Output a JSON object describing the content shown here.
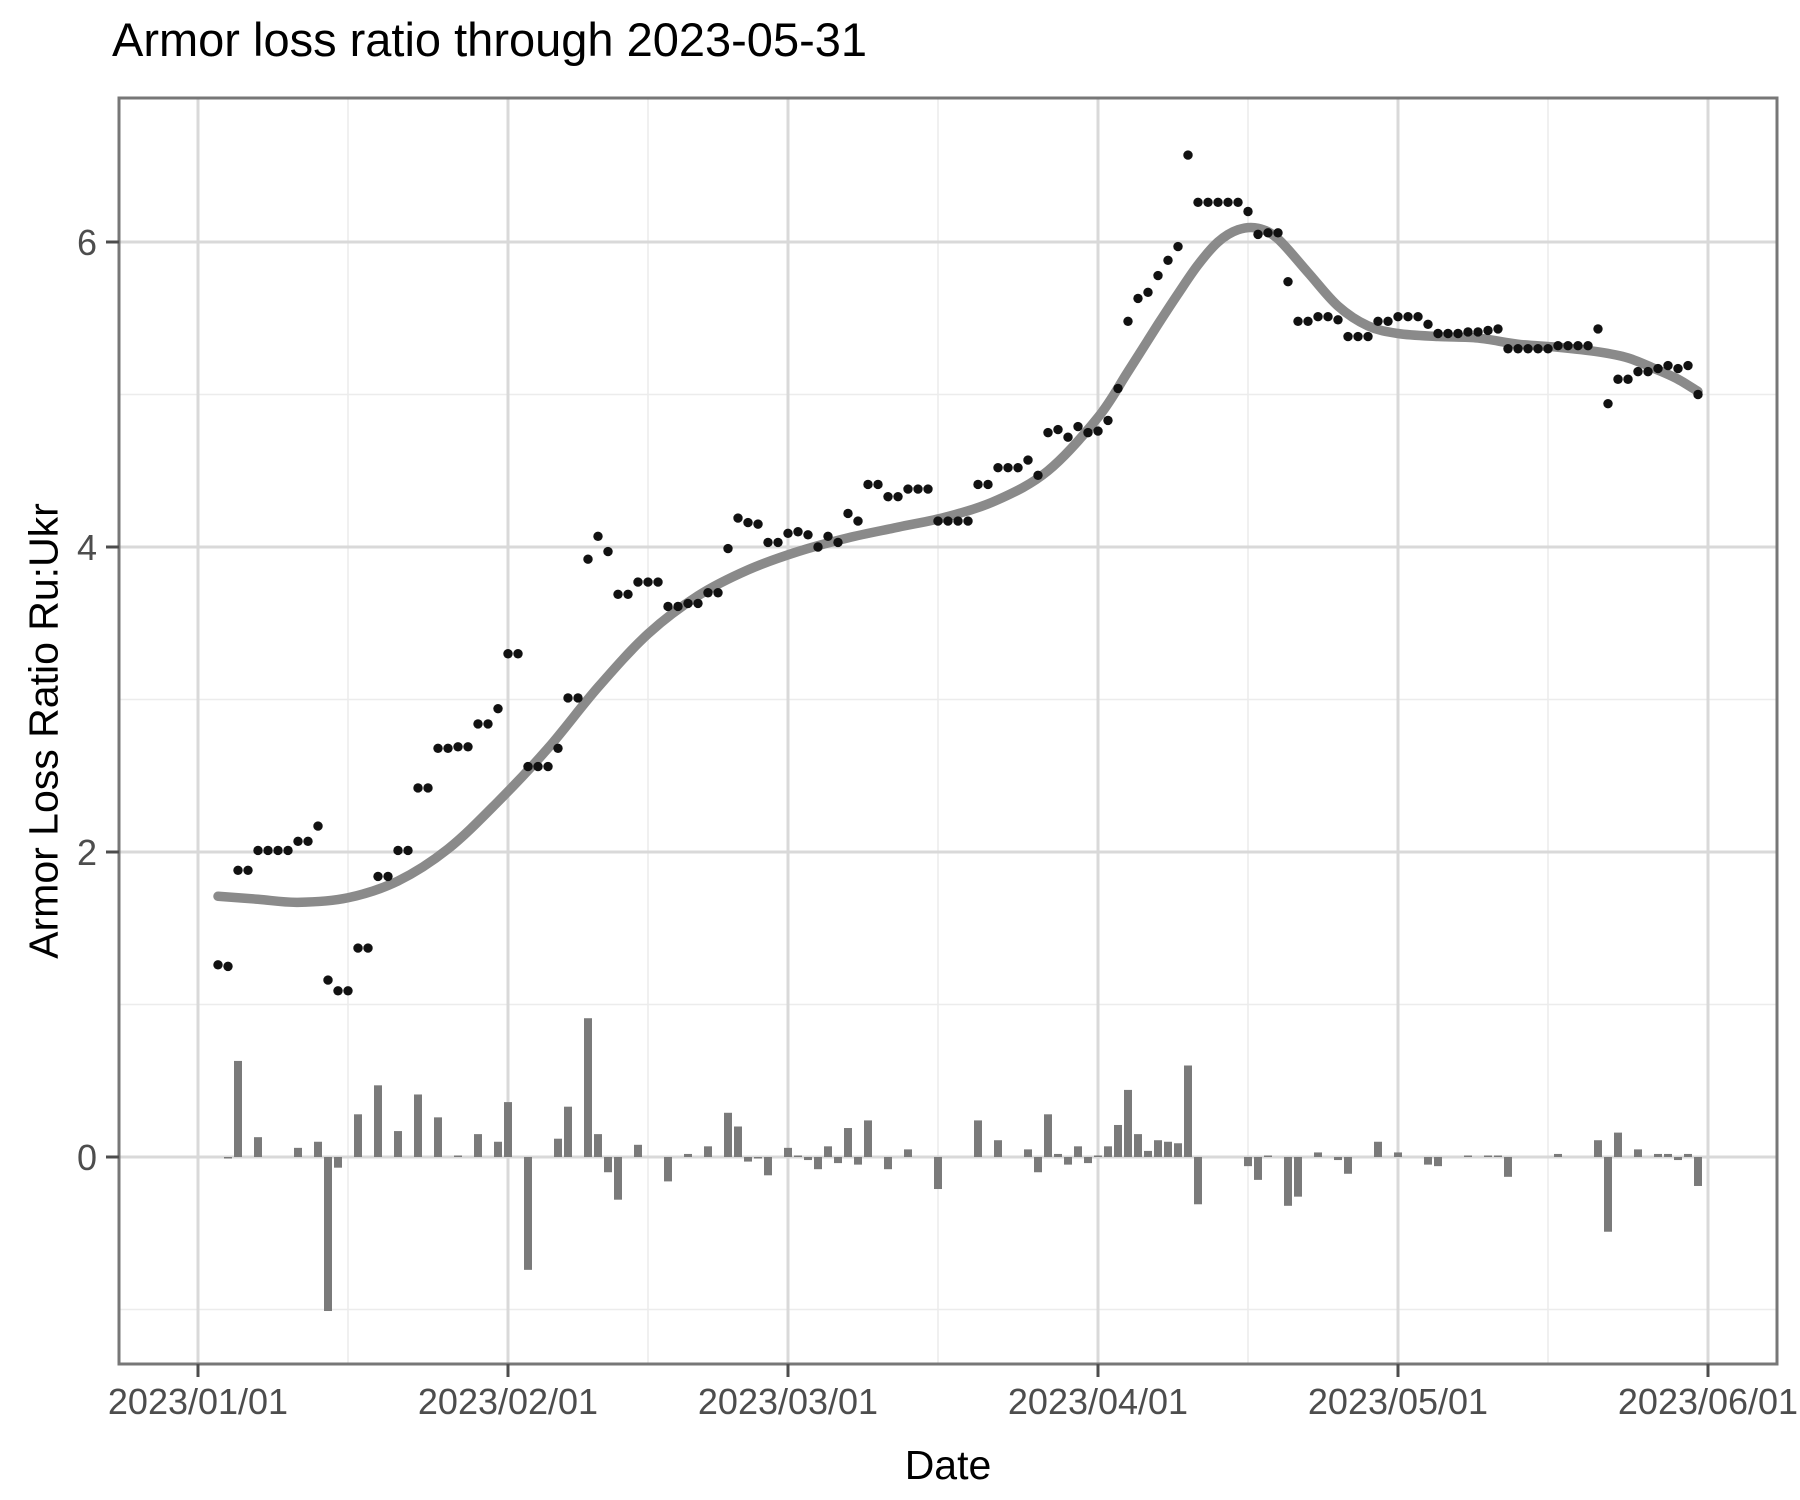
{
  "title": "Armor loss ratio through 2023-05-31",
  "colors": {
    "background": "#FFFFFF",
    "point": "#111111",
    "smooth_line": "#8A8A8A",
    "bar": "#7A7A7A",
    "grid_major": "#D9D9D9",
    "grid_minor": "#ECECEC",
    "panel_border": "#777777",
    "tick_mark": "#4D4D4D",
    "tick_label": "#4D4D4D",
    "title_text": "#000000",
    "axis_title_text": "#000000"
  },
  "chart_data": {
    "type": "scatter",
    "title": "Armor loss ratio through 2023-05-31",
    "xlabel": "Date",
    "ylabel": "Armor Loss Ratio Ru:Ukr",
    "x_tick_labels": [
      "2023/01/01",
      "2023/02/01",
      "2023/03/01",
      "2023/04/01",
      "2023/05/01",
      "2023/06/01"
    ],
    "x_tick_dates": [
      "2023-01-01",
      "2023-02-01",
      "2023-03-01",
      "2023-04-01",
      "2023-05-01",
      "2023-06-01"
    ],
    "x_minor_dates": [
      "2023-01-16",
      "2023-02-15",
      "2023-03-16",
      "2023-04-16",
      "2023-05-16"
    ],
    "y_tick_labels": [
      "0",
      "2",
      "4",
      "6"
    ],
    "y_ticks": [
      0,
      2,
      4,
      6
    ],
    "y_minor_ticks": [
      -1,
      1,
      3,
      5
    ],
    "ylim": [
      -1.36,
      6.95
    ],
    "xlim": [
      "2022-12-24",
      "2023-06-08"
    ],
    "grid": true,
    "legend_position": "none",
    "series": [
      {
        "name": "daily_armor_loss_ratio",
        "type": "scatter",
        "points": [
          [
            "2023-01-03",
            1.26
          ],
          [
            "2023-01-04",
            1.25
          ],
          [
            "2023-01-05",
            1.88
          ],
          [
            "2023-01-06",
            1.88
          ],
          [
            "2023-01-07",
            2.01
          ],
          [
            "2023-01-08",
            2.01
          ],
          [
            "2023-01-09",
            2.01
          ],
          [
            "2023-01-10",
            2.01
          ],
          [
            "2023-01-11",
            2.07
          ],
          [
            "2023-01-12",
            2.07
          ],
          [
            "2023-01-13",
            2.17
          ],
          [
            "2023-01-14",
            1.16
          ],
          [
            "2023-01-15",
            1.09
          ],
          [
            "2023-01-16",
            1.09
          ],
          [
            "2023-01-17",
            1.37
          ],
          [
            "2023-01-18",
            1.37
          ],
          [
            "2023-01-19",
            1.84
          ],
          [
            "2023-01-20",
            1.84
          ],
          [
            "2023-01-21",
            2.01
          ],
          [
            "2023-01-22",
            2.01
          ],
          [
            "2023-01-23",
            2.42
          ],
          [
            "2023-01-24",
            2.42
          ],
          [
            "2023-01-25",
            2.68
          ],
          [
            "2023-01-26",
            2.68
          ],
          [
            "2023-01-27",
            2.69
          ],
          [
            "2023-01-28",
            2.69
          ],
          [
            "2023-01-29",
            2.84
          ],
          [
            "2023-01-30",
            2.84
          ],
          [
            "2023-01-31",
            2.94
          ],
          [
            "2023-02-01",
            3.3
          ],
          [
            "2023-02-02",
            3.3
          ],
          [
            "2023-02-03",
            2.56
          ],
          [
            "2023-02-04",
            2.56
          ],
          [
            "2023-02-05",
            2.56
          ],
          [
            "2023-02-06",
            2.68
          ],
          [
            "2023-02-07",
            3.01
          ],
          [
            "2023-02-08",
            3.01
          ],
          [
            "2023-02-09",
            3.92
          ],
          [
            "2023-02-10",
            4.07
          ],
          [
            "2023-02-11",
            3.97
          ],
          [
            "2023-02-12",
            3.69
          ],
          [
            "2023-02-13",
            3.69
          ],
          [
            "2023-02-14",
            3.77
          ],
          [
            "2023-02-15",
            3.77
          ],
          [
            "2023-02-16",
            3.77
          ],
          [
            "2023-02-17",
            3.61
          ],
          [
            "2023-02-18",
            3.61
          ],
          [
            "2023-02-19",
            3.63
          ],
          [
            "2023-02-20",
            3.63
          ],
          [
            "2023-02-21",
            3.7
          ],
          [
            "2023-02-22",
            3.7
          ],
          [
            "2023-02-23",
            3.99
          ],
          [
            "2023-02-24",
            4.19
          ],
          [
            "2023-02-25",
            4.16
          ],
          [
            "2023-02-26",
            4.15
          ],
          [
            "2023-02-27",
            4.03
          ],
          [
            "2023-02-28",
            4.03
          ],
          [
            "2023-03-01",
            4.09
          ],
          [
            "2023-03-02",
            4.1
          ],
          [
            "2023-03-03",
            4.08
          ],
          [
            "2023-03-04",
            4.0
          ],
          [
            "2023-03-05",
            4.07
          ],
          [
            "2023-03-06",
            4.03
          ],
          [
            "2023-03-07",
            4.22
          ],
          [
            "2023-03-08",
            4.17
          ],
          [
            "2023-03-09",
            4.41
          ],
          [
            "2023-03-10",
            4.41
          ],
          [
            "2023-03-11",
            4.33
          ],
          [
            "2023-03-12",
            4.33
          ],
          [
            "2023-03-13",
            4.38
          ],
          [
            "2023-03-14",
            4.38
          ],
          [
            "2023-03-15",
            4.38
          ],
          [
            "2023-03-16",
            4.17
          ],
          [
            "2023-03-17",
            4.17
          ],
          [
            "2023-03-18",
            4.17
          ],
          [
            "2023-03-19",
            4.17
          ],
          [
            "2023-03-20",
            4.41
          ],
          [
            "2023-03-21",
            4.41
          ],
          [
            "2023-03-22",
            4.52
          ],
          [
            "2023-03-23",
            4.52
          ],
          [
            "2023-03-24",
            4.52
          ],
          [
            "2023-03-25",
            4.57
          ],
          [
            "2023-03-26",
            4.47
          ],
          [
            "2023-03-27",
            4.75
          ],
          [
            "2023-03-28",
            4.77
          ],
          [
            "2023-03-29",
            4.72
          ],
          [
            "2023-03-30",
            4.79
          ],
          [
            "2023-03-31",
            4.75
          ],
          [
            "2023-04-01",
            4.76
          ],
          [
            "2023-04-02",
            4.83
          ],
          [
            "2023-04-03",
            5.04
          ],
          [
            "2023-04-04",
            5.48
          ],
          [
            "2023-04-05",
            5.63
          ],
          [
            "2023-04-06",
            5.67
          ],
          [
            "2023-04-07",
            5.78
          ],
          [
            "2023-04-08",
            5.88
          ],
          [
            "2023-04-09",
            5.97
          ],
          [
            "2023-04-10",
            6.57
          ],
          [
            "2023-04-11",
            6.26
          ],
          [
            "2023-04-12",
            6.26
          ],
          [
            "2023-04-13",
            6.26
          ],
          [
            "2023-04-14",
            6.26
          ],
          [
            "2023-04-15",
            6.26
          ],
          [
            "2023-04-16",
            6.2
          ],
          [
            "2023-04-17",
            6.05
          ],
          [
            "2023-04-18",
            6.06
          ],
          [
            "2023-04-19",
            6.06
          ],
          [
            "2023-04-20",
            5.74
          ],
          [
            "2023-04-21",
            5.48
          ],
          [
            "2023-04-22",
            5.48
          ],
          [
            "2023-04-23",
            5.51
          ],
          [
            "2023-04-24",
            5.51
          ],
          [
            "2023-04-25",
            5.49
          ],
          [
            "2023-04-26",
            5.38
          ],
          [
            "2023-04-27",
            5.38
          ],
          [
            "2023-04-28",
            5.38
          ],
          [
            "2023-04-29",
            5.48
          ],
          [
            "2023-04-30",
            5.48
          ],
          [
            "2023-05-01",
            5.51
          ],
          [
            "2023-05-02",
            5.51
          ],
          [
            "2023-05-03",
            5.51
          ],
          [
            "2023-05-04",
            5.46
          ],
          [
            "2023-05-05",
            5.4
          ],
          [
            "2023-05-06",
            5.4
          ],
          [
            "2023-05-07",
            5.4
          ],
          [
            "2023-05-08",
            5.41
          ],
          [
            "2023-05-09",
            5.41
          ],
          [
            "2023-05-10",
            5.42
          ],
          [
            "2023-05-11",
            5.43
          ],
          [
            "2023-05-12",
            5.3
          ],
          [
            "2023-05-13",
            5.3
          ],
          [
            "2023-05-14",
            5.3
          ],
          [
            "2023-05-15",
            5.3
          ],
          [
            "2023-05-16",
            5.3
          ],
          [
            "2023-05-17",
            5.32
          ],
          [
            "2023-05-18",
            5.32
          ],
          [
            "2023-05-19",
            5.32
          ],
          [
            "2023-05-20",
            5.32
          ],
          [
            "2023-05-21",
            5.43
          ],
          [
            "2023-05-22",
            4.94
          ],
          [
            "2023-05-23",
            5.1
          ],
          [
            "2023-05-24",
            5.1
          ],
          [
            "2023-05-25",
            5.15
          ],
          [
            "2023-05-26",
            5.15
          ],
          [
            "2023-05-27",
            5.17
          ],
          [
            "2023-05-28",
            5.19
          ],
          [
            "2023-05-29",
            5.17
          ],
          [
            "2023-05-30",
            5.19
          ],
          [
            "2023-05-31",
            5.0
          ]
        ]
      },
      {
        "name": "loess_smooth",
        "type": "line",
        "points": [
          [
            "2023-01-03",
            1.71
          ],
          [
            "2023-01-07",
            1.69
          ],
          [
            "2023-01-11",
            1.67
          ],
          [
            "2023-01-16",
            1.7
          ],
          [
            "2023-01-21",
            1.81
          ],
          [
            "2023-01-26",
            2.02
          ],
          [
            "2023-01-31",
            2.33
          ],
          [
            "2023-02-05",
            2.68
          ],
          [
            "2023-02-10",
            3.08
          ],
          [
            "2023-02-15",
            3.43
          ],
          [
            "2023-02-20",
            3.68
          ],
          [
            "2023-02-25",
            3.85
          ],
          [
            "2023-03-02",
            3.97
          ],
          [
            "2023-03-07",
            4.06
          ],
          [
            "2023-03-12",
            4.13
          ],
          [
            "2023-03-17",
            4.2
          ],
          [
            "2023-03-22",
            4.31
          ],
          [
            "2023-03-27",
            4.5
          ],
          [
            "2023-04-01",
            4.85
          ],
          [
            "2023-04-04",
            5.15
          ],
          [
            "2023-04-07",
            5.46
          ],
          [
            "2023-04-09",
            5.66
          ],
          [
            "2023-04-11",
            5.85
          ],
          [
            "2023-04-13",
            6.0
          ],
          [
            "2023-04-15",
            6.08
          ],
          [
            "2023-04-17",
            6.09
          ],
          [
            "2023-04-19",
            6.02
          ],
          [
            "2023-04-22",
            5.8
          ],
          [
            "2023-04-25",
            5.58
          ],
          [
            "2023-04-28",
            5.45
          ],
          [
            "2023-05-01",
            5.4
          ],
          [
            "2023-05-05",
            5.38
          ],
          [
            "2023-05-09",
            5.37
          ],
          [
            "2023-05-13",
            5.33
          ],
          [
            "2023-05-17",
            5.31
          ],
          [
            "2023-05-21",
            5.28
          ],
          [
            "2023-05-24",
            5.24
          ],
          [
            "2023-05-27",
            5.16
          ],
          [
            "2023-05-29",
            5.1
          ],
          [
            "2023-05-31",
            5.02
          ]
        ]
      },
      {
        "name": "daily_change_bars",
        "type": "bar",
        "derived_from": "daily_armor_loss_ratio",
        "note": "bar height = day-over-day change of the ratio; drawn around the 0 line"
      }
    ]
  }
}
